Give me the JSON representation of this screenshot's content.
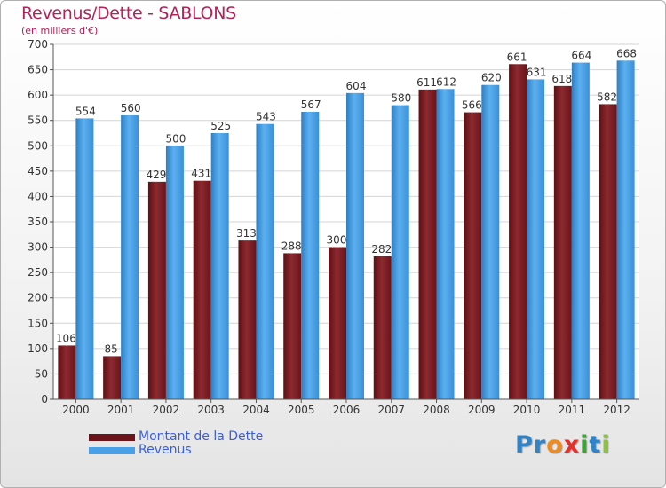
{
  "chart_data": {
    "type": "bar",
    "title": "Revenus/Dette - SABLONS",
    "subtitle": "(en milliers d'€)",
    "categories": [
      "2000",
      "2001",
      "2002",
      "2003",
      "2004",
      "2005",
      "2006",
      "2007",
      "2008",
      "2009",
      "2010",
      "2011",
      "2012"
    ],
    "series": [
      {
        "name": "Montant de la Dette",
        "color": "#7a1a1f",
        "values": [
          106,
          85,
          429,
          431,
          313,
          288,
          300,
          282,
          611,
          566,
          661,
          618,
          582
        ]
      },
      {
        "name": "Revenus",
        "color": "#4aa0e6",
        "values": [
          554,
          560,
          500,
          525,
          543,
          567,
          604,
          580,
          612,
          620,
          631,
          664,
          668
        ]
      }
    ],
    "ylim": [
      0,
      700
    ],
    "yticks": [
      0,
      50,
      100,
      150,
      200,
      250,
      300,
      350,
      400,
      450,
      500,
      550,
      600,
      650,
      700
    ],
    "grid": true,
    "legend": "bottom-left"
  },
  "logo": {
    "letters": [
      {
        "ch": "P",
        "color": "#2f84c9"
      },
      {
        "ch": "r",
        "color": "#2f84c9"
      },
      {
        "ch": "o",
        "color": "#f08a1c"
      },
      {
        "ch": "x",
        "color": "#e2312b"
      },
      {
        "ch": "i",
        "color": "#3aa535"
      },
      {
        "ch": "t",
        "color": "#2f84c9"
      },
      {
        "ch": "i",
        "color": "#8bc53f"
      }
    ]
  }
}
